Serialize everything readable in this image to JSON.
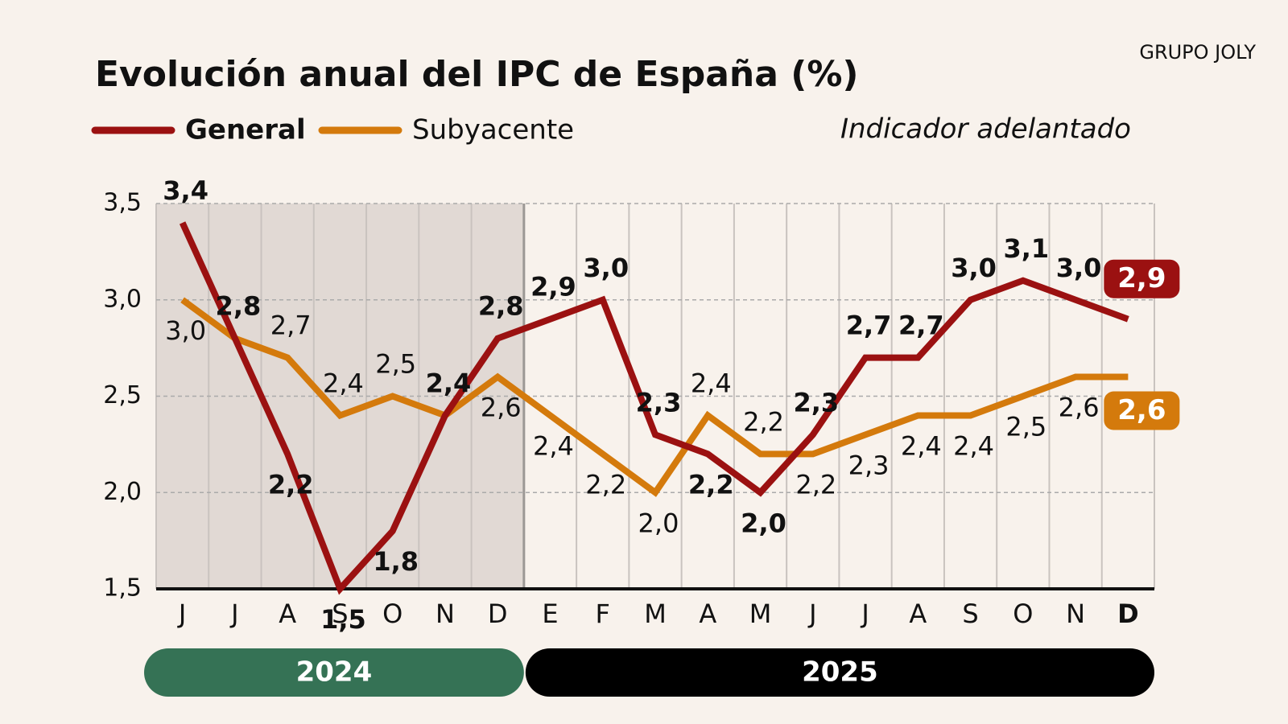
{
  "chart_data": {
    "type": "line",
    "title": "Evolución anual del IPC de España (%)",
    "source": "GRUPO JOLY",
    "note": "Indicador adelantado",
    "categories": [
      "J",
      "J",
      "A",
      "S",
      "O",
      "N",
      "D",
      "E",
      "F",
      "M",
      "A",
      "M",
      "J",
      "J",
      "A",
      "S",
      "O",
      "N",
      "D"
    ],
    "x_group_labels": [
      "2024",
      "2025"
    ],
    "series": [
      {
        "name": "General",
        "color": "#9b1111",
        "values": [
          3.4,
          2.8,
          2.2,
          1.5,
          1.8,
          2.4,
          2.8,
          2.9,
          3.0,
          2.3,
          2.2,
          2.0,
          2.3,
          2.7,
          2.7,
          3.0,
          3.1,
          3.0,
          2.9
        ],
        "value_labels": [
          "3,4",
          "2,8",
          "2,2",
          "1,5",
          "1,8",
          "2,4",
          "2,8",
          "2,9",
          "3,0",
          "2,3",
          "2,2",
          "2,0",
          "2,3",
          "2,7",
          "2,7",
          "3,0",
          "3,1",
          "3,0",
          "2,9"
        ]
      },
      {
        "name": "Subyacente",
        "color": "#d47a0c",
        "values": [
          3.0,
          2.8,
          2.7,
          2.4,
          2.5,
          2.4,
          2.6,
          2.4,
          2.2,
          2.0,
          2.4,
          2.2,
          2.2,
          2.3,
          2.4,
          2.4,
          2.5,
          2.6,
          2.6
        ],
        "value_labels": [
          "3,0",
          null,
          "2,7",
          "2,4",
          "2,5",
          null,
          "2,6",
          "2,4",
          "2,2",
          "2,0",
          "2,4",
          "2,2",
          "2,2",
          "2,3",
          "2,4",
          "2,4",
          "2,5",
          "2,6",
          "2,6"
        ]
      }
    ],
    "ylim": [
      1.5,
      3.5
    ],
    "yticks": [
      {
        "value": 1.5,
        "label": "1,5"
      },
      {
        "value": 2.0,
        "label": "2,0"
      },
      {
        "value": 2.5,
        "label": "2,5"
      },
      {
        "value": 3.0,
        "label": "3,0"
      },
      {
        "value": 3.5,
        "label": "3,5"
      }
    ],
    "grid": true
  }
}
